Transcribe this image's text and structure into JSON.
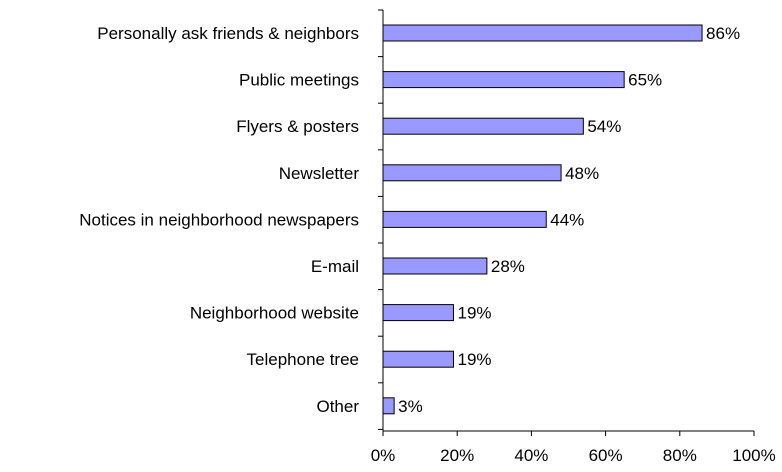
{
  "chart_data": {
    "type": "bar",
    "orientation": "horizontal",
    "categories": [
      "Personally ask friends & neighbors",
      "Public meetings",
      "Flyers & posters",
      "Newsletter",
      "Notices in neighborhood newspapers",
      "E-mail",
      "Neighborhood website",
      "Telephone tree",
      "Other"
    ],
    "values": [
      86,
      65,
      54,
      48,
      44,
      28,
      19,
      19,
      3
    ],
    "value_labels": [
      "86%",
      "65%",
      "54%",
      "48%",
      "44%",
      "28%",
      "19%",
      "19%",
      "3%"
    ],
    "xlim": [
      0,
      100
    ],
    "x_ticks": [
      "0%",
      "20%",
      "40%",
      "60%",
      "80%",
      "100%"
    ],
    "title": "",
    "xlabel": "",
    "ylabel": "",
    "grid": false,
    "legend": "none",
    "bar_color": "#9999ff",
    "bar_edge_color": "#000000"
  }
}
